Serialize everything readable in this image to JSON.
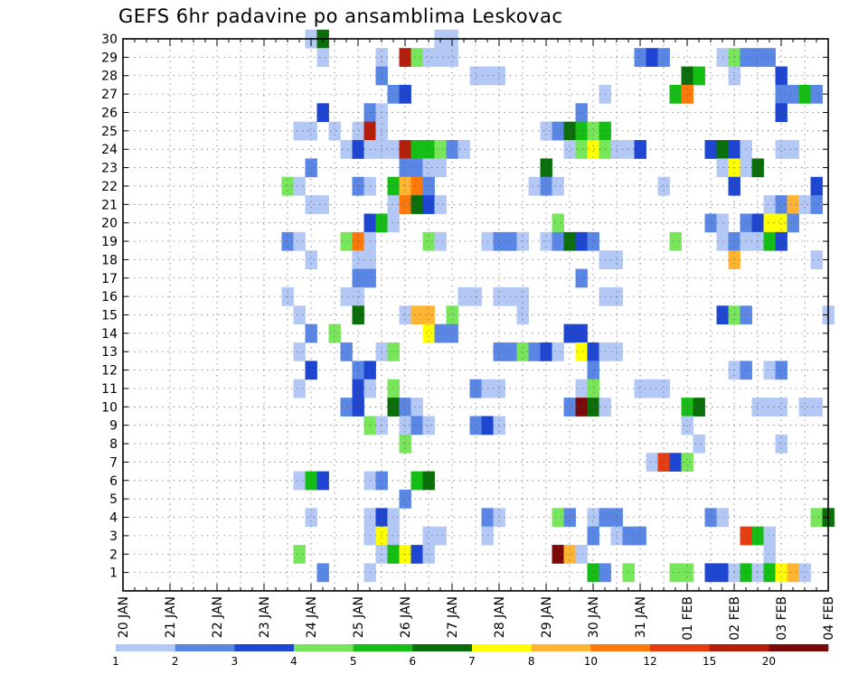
{
  "chart_data": {
    "type": "heatmap",
    "title": "GEFS 6hr padavine po ansamblima Leskovac",
    "xlabel": "",
    "ylabel": "",
    "x_tick_labels": [
      "20 JAN",
      "21 JAN",
      "22 JAN",
      "23 JAN",
      "24 JAN",
      "25 JAN",
      "26 JAN",
      "27 JAN",
      "28 JAN",
      "29 JAN",
      "30 JAN",
      "31 JAN",
      "01 FEB",
      "02 FEB",
      "03 FEB",
      "04 FEB"
    ],
    "y_tick_labels": [
      1,
      2,
      3,
      4,
      5,
      6,
      7,
      8,
      9,
      10,
      11,
      12,
      13,
      14,
      15,
      16,
      17,
      18,
      19,
      20,
      21,
      22,
      23,
      24,
      25,
      26,
      27,
      28,
      29,
      30
    ],
    "x_unit": "6h steps from 20 JAN 00Z",
    "x_range": [
      0,
      60
    ],
    "y_range": [
      0,
      30
    ],
    "grid": true,
    "colorbar": {
      "labels": [
        "1",
        "2",
        "3",
        "4",
        "5",
        "6",
        "7",
        "8",
        "10",
        "12",
        "15",
        "20"
      ],
      "colors": [
        "#b4c8f5",
        "#5a87e6",
        "#1e46d2",
        "#78e65a",
        "#14be14",
        "#0a6e0a",
        "#ffff00",
        "#ffb432",
        "#ff780a",
        "#e63c0f",
        "#b41e0a",
        "#7d0a0a"
      ]
    },
    "cells": [
      [
        1,
        30,
        16
      ],
      [
        6,
        30,
        17
      ],
      [
        1,
        30,
        27
      ],
      [
        1,
        30,
        28
      ],
      [
        1,
        29,
        17
      ],
      [
        1,
        29,
        22
      ],
      [
        11,
        29,
        24
      ],
      [
        4,
        29,
        25
      ],
      [
        1,
        29,
        26
      ],
      [
        1,
        29,
        27
      ],
      [
        1,
        29,
        28
      ],
      [
        2,
        29,
        44
      ],
      [
        3,
        29,
        45
      ],
      [
        2,
        29,
        46
      ],
      [
        1,
        29,
        51
      ],
      [
        4,
        29,
        52
      ],
      [
        2,
        29,
        53
      ],
      [
        2,
        29,
        54
      ],
      [
        2,
        29,
        55
      ],
      [
        2,
        28,
        22
      ],
      [
        1,
        28,
        30
      ],
      [
        1,
        28,
        31
      ],
      [
        1,
        28,
        32
      ],
      [
        6,
        28,
        48
      ],
      [
        5,
        28,
        49
      ],
      [
        1,
        28,
        52
      ],
      [
        3,
        28,
        56
      ],
      [
        2,
        27,
        23
      ],
      [
        3,
        27,
        24
      ],
      [
        1,
        27,
        41
      ],
      [
        5,
        27,
        47
      ],
      [
        9,
        27,
        48
      ],
      [
        2,
        27,
        56
      ],
      [
        2,
        27,
        57
      ],
      [
        5,
        27,
        58
      ],
      [
        2,
        27,
        59
      ],
      [
        3,
        26,
        17
      ],
      [
        2,
        26,
        21
      ],
      [
        1,
        26,
        22
      ],
      [
        2,
        26,
        39
      ],
      [
        3,
        26,
        56
      ],
      [
        1,
        25,
        15
      ],
      [
        1,
        25,
        16
      ],
      [
        1,
        25,
        18
      ],
      [
        1,
        25,
        20
      ],
      [
        11,
        25,
        21
      ],
      [
        1,
        25,
        22
      ],
      [
        1,
        25,
        36
      ],
      [
        2,
        25,
        37
      ],
      [
        6,
        25,
        38
      ],
      [
        5,
        25,
        39
      ],
      [
        4,
        25,
        40
      ],
      [
        5,
        25,
        41
      ],
      [
        1,
        24,
        19
      ],
      [
        3,
        24,
        20
      ],
      [
        1,
        24,
        21
      ],
      [
        1,
        24,
        22
      ],
      [
        1,
        24,
        23
      ],
      [
        11,
        24,
        24
      ],
      [
        5,
        24,
        25
      ],
      [
        5,
        24,
        26
      ],
      [
        4,
        24,
        27
      ],
      [
        2,
        24,
        28
      ],
      [
        1,
        24,
        29
      ],
      [
        1,
        24,
        38
      ],
      [
        4,
        24,
        39
      ],
      [
        7,
        24,
        40
      ],
      [
        4,
        24,
        41
      ],
      [
        1,
        24,
        42
      ],
      [
        1,
        24,
        43
      ],
      [
        3,
        24,
        44
      ],
      [
        3,
        24,
        50
      ],
      [
        6,
        24,
        51
      ],
      [
        3,
        24,
        52
      ],
      [
        1,
        24,
        53
      ],
      [
        1,
        24,
        56
      ],
      [
        1,
        24,
        57
      ],
      [
        2,
        23,
        16
      ],
      [
        2,
        23,
        24
      ],
      [
        2,
        23,
        25
      ],
      [
        1,
        23,
        26
      ],
      [
        1,
        23,
        27
      ],
      [
        6,
        23,
        36
      ],
      [
        1,
        23,
        51
      ],
      [
        7,
        23,
        52
      ],
      [
        1,
        23,
        53
      ],
      [
        6,
        23,
        54
      ],
      [
        4,
        22,
        14
      ],
      [
        1,
        22,
        15
      ],
      [
        2,
        22,
        20
      ],
      [
        1,
        22,
        21
      ],
      [
        5,
        22,
        23
      ],
      [
        8,
        22,
        24
      ],
      [
        9,
        22,
        25
      ],
      [
        2,
        22,
        26
      ],
      [
        1,
        22,
        35
      ],
      [
        2,
        22,
        36
      ],
      [
        1,
        22,
        37
      ],
      [
        1,
        22,
        46
      ],
      [
        3,
        22,
        52
      ],
      [
        3,
        22,
        59
      ],
      [
        1,
        21,
        16
      ],
      [
        1,
        21,
        17
      ],
      [
        1,
        21,
        23
      ],
      [
        9,
        21,
        24
      ],
      [
        6,
        21,
        25
      ],
      [
        3,
        21,
        26
      ],
      [
        1,
        21,
        27
      ],
      [
        1,
        21,
        55
      ],
      [
        2,
        21,
        56
      ],
      [
        8,
        21,
        57
      ],
      [
        1,
        21,
        58
      ],
      [
        2,
        21,
        59
      ],
      [
        3,
        20,
        21
      ],
      [
        5,
        20,
        22
      ],
      [
        1,
        20,
        23
      ],
      [
        4,
        20,
        37
      ],
      [
        2,
        20,
        50
      ],
      [
        1,
        20,
        51
      ],
      [
        2,
        20,
        53
      ],
      [
        3,
        20,
        54
      ],
      [
        7,
        20,
        55
      ],
      [
        7,
        20,
        56
      ],
      [
        2,
        20,
        57
      ],
      [
        2,
        19,
        14
      ],
      [
        1,
        19,
        15
      ],
      [
        4,
        19,
        19
      ],
      [
        9,
        19,
        20
      ],
      [
        1,
        19,
        21
      ],
      [
        4,
        19,
        26
      ],
      [
        1,
        19,
        27
      ],
      [
        1,
        19,
        31
      ],
      [
        2,
        19,
        32
      ],
      [
        2,
        19,
        33
      ],
      [
        1,
        19,
        34
      ],
      [
        1,
        19,
        36
      ],
      [
        2,
        19,
        37
      ],
      [
        6,
        19,
        38
      ],
      [
        3,
        19,
        39
      ],
      [
        2,
        19,
        40
      ],
      [
        4,
        19,
        47
      ],
      [
        1,
        19,
        51
      ],
      [
        2,
        19,
        52
      ],
      [
        1,
        19,
        53
      ],
      [
        1,
        19,
        54
      ],
      [
        5,
        19,
        55
      ],
      [
        3,
        19,
        56
      ],
      [
        1,
        18,
        16
      ],
      [
        1,
        18,
        20
      ],
      [
        1,
        18,
        21
      ],
      [
        1,
        18,
        41
      ],
      [
        1,
        18,
        42
      ],
      [
        8,
        18,
        52
      ],
      [
        1,
        18,
        59
      ],
      [
        2,
        17,
        20
      ],
      [
        2,
        17,
        21
      ],
      [
        2,
        17,
        39
      ],
      [
        1,
        16,
        14
      ],
      [
        1,
        16,
        19
      ],
      [
        1,
        16,
        20
      ],
      [
        1,
        16,
        29
      ],
      [
        1,
        16,
        30
      ],
      [
        1,
        16,
        32
      ],
      [
        1,
        16,
        33
      ],
      [
        1,
        16,
        34
      ],
      [
        1,
        16,
        41
      ],
      [
        1,
        16,
        42
      ],
      [
        1,
        15,
        15
      ],
      [
        6,
        15,
        20
      ],
      [
        1,
        15,
        24
      ],
      [
        8,
        15,
        25
      ],
      [
        8,
        15,
        26
      ],
      [
        4,
        15,
        28
      ],
      [
        1,
        15,
        34
      ],
      [
        3,
        15,
        51
      ],
      [
        4,
        15,
        52
      ],
      [
        2,
        15,
        53
      ],
      [
        1,
        15,
        60
      ],
      [
        2,
        14,
        16
      ],
      [
        4,
        14,
        18
      ],
      [
        7,
        14,
        26
      ],
      [
        2,
        14,
        27
      ],
      [
        2,
        14,
        28
      ],
      [
        3,
        14,
        38
      ],
      [
        3,
        14,
        39
      ],
      [
        1,
        13,
        15
      ],
      [
        2,
        13,
        19
      ],
      [
        1,
        13,
        22
      ],
      [
        4,
        13,
        23
      ],
      [
        2,
        13,
        32
      ],
      [
        2,
        13,
        33
      ],
      [
        4,
        13,
        34
      ],
      [
        2,
        13,
        35
      ],
      [
        3,
        13,
        36
      ],
      [
        1,
        13,
        37
      ],
      [
        7,
        13,
        39
      ],
      [
        3,
        13,
        40
      ],
      [
        1,
        13,
        41
      ],
      [
        1,
        13,
        42
      ],
      [
        3,
        12,
        16
      ],
      [
        2,
        12,
        20
      ],
      [
        3,
        12,
        21
      ],
      [
        2,
        12,
        40
      ],
      [
        1,
        12,
        52
      ],
      [
        2,
        12,
        53
      ],
      [
        1,
        12,
        55
      ],
      [
        2,
        12,
        56
      ],
      [
        1,
        11,
        15
      ],
      [
        3,
        11,
        20
      ],
      [
        1,
        11,
        21
      ],
      [
        4,
        11,
        23
      ],
      [
        2,
        11,
        30
      ],
      [
        1,
        11,
        31
      ],
      [
        1,
        11,
        32
      ],
      [
        1,
        11,
        39
      ],
      [
        4,
        11,
        40
      ],
      [
        1,
        11,
        44
      ],
      [
        1,
        11,
        45
      ],
      [
        1,
        11,
        46
      ],
      [
        2,
        10,
        19
      ],
      [
        3,
        10,
        20
      ],
      [
        6,
        10,
        23
      ],
      [
        2,
        10,
        24
      ],
      [
        1,
        10,
        25
      ],
      [
        2,
        10,
        38
      ],
      [
        12,
        10,
        39
      ],
      [
        6,
        10,
        40
      ],
      [
        1,
        10,
        41
      ],
      [
        5,
        10,
        48
      ],
      [
        6,
        10,
        49
      ],
      [
        1,
        10,
        54
      ],
      [
        1,
        10,
        55
      ],
      [
        1,
        10,
        56
      ],
      [
        1,
        10,
        58
      ],
      [
        1,
        10,
        59
      ],
      [
        4,
        9,
        21
      ],
      [
        1,
        9,
        22
      ],
      [
        1,
        9,
        24
      ],
      [
        2,
        9,
        25
      ],
      [
        1,
        9,
        26
      ],
      [
        2,
        9,
        30
      ],
      [
        3,
        9,
        31
      ],
      [
        1,
        9,
        32
      ],
      [
        1,
        9,
        48
      ],
      [
        4,
        8,
        24
      ],
      [
        1,
        8,
        49
      ],
      [
        1,
        8,
        56
      ],
      [
        1,
        7,
        45
      ],
      [
        10,
        7,
        46
      ],
      [
        3,
        7,
        47
      ],
      [
        4,
        7,
        48
      ],
      [
        1,
        6,
        15
      ],
      [
        5,
        6,
        16
      ],
      [
        3,
        6,
        17
      ],
      [
        1,
        6,
        21
      ],
      [
        2,
        6,
        22
      ],
      [
        5,
        6,
        25
      ],
      [
        6,
        6,
        26
      ],
      [
        2,
        5,
        24
      ],
      [
        1,
        4,
        16
      ],
      [
        1,
        4,
        21
      ],
      [
        3,
        4,
        22
      ],
      [
        1,
        4,
        23
      ],
      [
        2,
        4,
        31
      ],
      [
        1,
        4,
        32
      ],
      [
        4,
        4,
        37
      ],
      [
        2,
        4,
        38
      ],
      [
        1,
        4,
        40
      ],
      [
        2,
        4,
        41
      ],
      [
        2,
        4,
        42
      ],
      [
        2,
        4,
        50
      ],
      [
        1,
        4,
        51
      ],
      [
        4,
        4,
        59
      ],
      [
        6,
        4,
        60
      ],
      [
        1,
        3,
        21
      ],
      [
        7,
        3,
        22
      ],
      [
        1,
        3,
        23
      ],
      [
        1,
        3,
        26
      ],
      [
        1,
        3,
        27
      ],
      [
        1,
        3,
        31
      ],
      [
        2,
        3,
        40
      ],
      [
        1,
        3,
        42
      ],
      [
        2,
        3,
        43
      ],
      [
        2,
        3,
        44
      ],
      [
        10,
        3,
        53
      ],
      [
        5,
        3,
        54
      ],
      [
        1,
        3,
        55
      ],
      [
        4,
        2,
        15
      ],
      [
        1,
        2,
        22
      ],
      [
        5,
        2,
        23
      ],
      [
        7,
        2,
        24
      ],
      [
        3,
        2,
        25
      ],
      [
        1,
        2,
        26
      ],
      [
        12,
        2,
        37
      ],
      [
        8,
        2,
        38
      ],
      [
        1,
        2,
        39
      ],
      [
        1,
        2,
        55
      ],
      [
        2,
        1,
        17
      ],
      [
        1,
        1,
        21
      ],
      [
        5,
        1,
        40
      ],
      [
        2,
        1,
        41
      ],
      [
        4,
        1,
        43
      ],
      [
        4,
        1,
        47
      ],
      [
        4,
        1,
        48
      ],
      [
        3,
        1,
        50
      ],
      [
        3,
        1,
        51
      ],
      [
        1,
        1,
        52
      ],
      [
        5,
        1,
        53
      ],
      [
        1,
        1,
        54
      ],
      [
        5,
        1,
        55
      ],
      [
        7,
        1,
        56
      ],
      [
        8,
        1,
        57
      ],
      [
        1,
        1,
        58
      ]
    ]
  }
}
